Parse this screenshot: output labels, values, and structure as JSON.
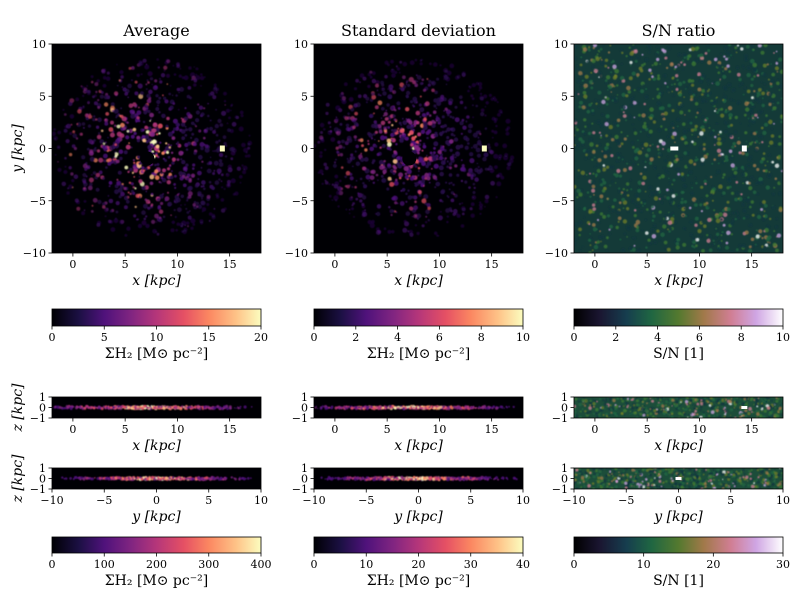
{
  "chart_data": [
    {
      "type": "heatmap",
      "title": "Average",
      "view": "face-on",
      "xlabel": "x [kpc]",
      "ylabel": "y [kpc]",
      "xlim": [
        -2,
        18
      ],
      "ylim": [
        -10,
        10
      ],
      "xticks": [
        "0",
        "5",
        "10",
        "15"
      ],
      "yticks": [
        "10",
        "5",
        "0",
        "−5",
        "−10"
      ],
      "colormap": "magma",
      "colorbar": {
        "label": "ΣH₂ [M⊙ pc⁻²]",
        "range": [
          0,
          20
        ],
        "ticks": [
          "0",
          "5",
          "10",
          "15",
          "20"
        ]
      }
    },
    {
      "type": "heatmap",
      "title": "Standard deviation",
      "view": "face-on",
      "xlabel": "x [kpc]",
      "xlim": [
        -2,
        18
      ],
      "ylim": [
        -10,
        10
      ],
      "xticks": [
        "0",
        "5",
        "10",
        "15"
      ],
      "yticks": [
        "10",
        "5",
        "0",
        "−5",
        "−10"
      ],
      "colormap": "magma",
      "colorbar": {
        "label": "ΣH₂ [M⊙ pc⁻²]",
        "range": [
          0,
          10
        ],
        "ticks": [
          "0",
          "2",
          "4",
          "6",
          "8",
          "10"
        ]
      }
    },
    {
      "type": "heatmap",
      "title": "S/N ratio",
      "view": "face-on",
      "xlabel": "x [kpc]",
      "xlim": [
        -2,
        18
      ],
      "ylim": [
        -10,
        10
      ],
      "xticks": [
        "0",
        "5",
        "10",
        "15"
      ],
      "yticks": [
        "10",
        "5",
        "0",
        "−5",
        "−10"
      ],
      "colormap": "cubehelix",
      "colorbar": {
        "label": "S/N [1]",
        "range": [
          0,
          10
        ],
        "ticks": [
          "0",
          "2",
          "4",
          "6",
          "8",
          "10"
        ]
      }
    },
    {
      "type": "heatmap",
      "view": "edge-on x-z",
      "xlabel": "x [kpc]",
      "ylabel": "z [kpc]",
      "xlim": [
        -2,
        18
      ],
      "ylim": [
        -1,
        1
      ],
      "xticks": [
        "0",
        "5",
        "10",
        "15"
      ],
      "yticks": [
        "1",
        "0",
        "−1"
      ],
      "colormap": "magma"
    },
    {
      "type": "heatmap",
      "view": "edge-on x-z",
      "xlabel": "x [kpc]",
      "xlim": [
        -2,
        18
      ],
      "ylim": [
        -1,
        1
      ],
      "xticks": [
        "0",
        "5",
        "10",
        "15"
      ],
      "yticks": [
        "1",
        "0",
        "−1"
      ],
      "colormap": "magma"
    },
    {
      "type": "heatmap",
      "view": "edge-on x-z",
      "xlabel": "x [kpc]",
      "xlim": [
        -2,
        18
      ],
      "ylim": [
        -1,
        1
      ],
      "xticks": [
        "0",
        "5",
        "10",
        "15"
      ],
      "yticks": [
        "1",
        "0",
        "−1"
      ],
      "colormap": "cubehelix"
    },
    {
      "type": "heatmap",
      "view": "edge-on y-z",
      "xlabel": "y [kpc]",
      "ylabel": "z [kpc]",
      "xlim": [
        -10,
        10
      ],
      "ylim": [
        -1,
        1
      ],
      "xticks": [
        "−10",
        "−5",
        "0",
        "5",
        "10"
      ],
      "yticks": [
        "1",
        "0",
        "−1"
      ],
      "colormap": "magma",
      "colorbar": {
        "label": "ΣH₂ [M⊙ pc⁻²]",
        "range": [
          0,
          400
        ],
        "ticks": [
          "0",
          "100",
          "200",
          "300",
          "400"
        ]
      }
    },
    {
      "type": "heatmap",
      "view": "edge-on y-z",
      "xlabel": "y [kpc]",
      "xlim": [
        -10,
        10
      ],
      "ylim": [
        -1,
        1
      ],
      "xticks": [
        "−10",
        "−5",
        "0",
        "5",
        "10"
      ],
      "yticks": [
        "1",
        "0",
        "−1"
      ],
      "colormap": "magma",
      "colorbar": {
        "label": "ΣH₂ [M⊙ pc⁻²]",
        "range": [
          0,
          40
        ],
        "ticks": [
          "0",
          "10",
          "20",
          "30",
          "40"
        ]
      }
    },
    {
      "type": "heatmap",
      "view": "edge-on y-z",
      "xlabel": "y [kpc]",
      "xlim": [
        -10,
        10
      ],
      "ylim": [
        -1,
        1
      ],
      "xticks": [
        "−10",
        "−5",
        "0",
        "5",
        "10"
      ],
      "yticks": [
        "1",
        "0",
        "−1"
      ],
      "colormap": "cubehelix",
      "colorbar": {
        "label": "S/N [1]",
        "range": [
          0,
          30
        ],
        "ticks": [
          "0",
          "10",
          "20",
          "30"
        ]
      }
    }
  ]
}
